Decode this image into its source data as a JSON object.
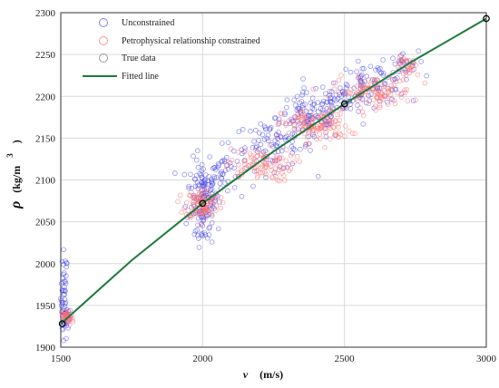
{
  "chart_data": {
    "type": "scatter",
    "xlabel": {
      "symbol": "v",
      "unit": "(m/s)"
    },
    "ylabel": {
      "symbol": "ρ",
      "unit": "(kg/m",
      "exponent": "3",
      "close": ")"
    },
    "xlim": [
      1500,
      3000
    ],
    "ylim": [
      1900,
      2300
    ],
    "xticks": [
      1500,
      2000,
      2500,
      3000
    ],
    "yticks": [
      1900,
      1950,
      2000,
      2050,
      2100,
      2150,
      2200,
      2250,
      2300
    ],
    "grid": true,
    "legend_position": "top-left",
    "series": [
      {
        "name": "Unconstrained",
        "marker": "open-circle",
        "color": "#3030e0",
        "clusters": [
          {
            "x": 1512,
            "y": 1960,
            "sx": 6,
            "sy": 28,
            "n": 45
          },
          {
            "x": 1520,
            "y": 1935,
            "sx": 8,
            "sy": 6,
            "n": 25
          },
          {
            "x": 2000,
            "y": 2085,
            "sx": 28,
            "sy": 20,
            "n": 110
          },
          {
            "x": 2070,
            "y": 2110,
            "sx": 25,
            "sy": 15,
            "n": 40
          },
          {
            "x": 2000,
            "y": 2045,
            "sx": 20,
            "sy": 12,
            "n": 30
          },
          {
            "x": 2250,
            "y": 2140,
            "sx": 70,
            "sy": 14,
            "n": 90
          },
          {
            "x": 2380,
            "y": 2175,
            "sx": 60,
            "sy": 14,
            "n": 100
          },
          {
            "x": 2500,
            "y": 2200,
            "sx": 50,
            "sy": 10,
            "n": 50
          },
          {
            "x": 2600,
            "y": 2215,
            "sx": 60,
            "sy": 12,
            "n": 70
          },
          {
            "x": 2700,
            "y": 2238,
            "sx": 30,
            "sy": 8,
            "n": 25
          }
        ]
      },
      {
        "name": "Petrophysical relationship constrained",
        "marker": "open-circle",
        "color": "#ff7a7a",
        "clusters": [
          {
            "x": 1520,
            "y": 1935,
            "sx": 12,
            "sy": 5,
            "n": 40
          },
          {
            "x": 2000,
            "y": 2072,
            "sx": 30,
            "sy": 9,
            "n": 100
          },
          {
            "x": 2200,
            "y": 2118,
            "sx": 60,
            "sy": 10,
            "n": 90
          },
          {
            "x": 2400,
            "y": 2165,
            "sx": 60,
            "sy": 10,
            "n": 120
          },
          {
            "x": 2600,
            "y": 2205,
            "sx": 70,
            "sy": 9,
            "n": 110
          },
          {
            "x": 2730,
            "y": 2235,
            "sx": 25,
            "sy": 6,
            "n": 30
          }
        ]
      },
      {
        "name": "True data",
        "marker": "open-circle-black",
        "color": "#000000",
        "points": [
          {
            "x": 1505,
            "y": 1928
          },
          {
            "x": 2000,
            "y": 2072
          },
          {
            "x": 2500,
            "y": 2191
          },
          {
            "x": 3000,
            "y": 2293
          }
        ]
      },
      {
        "name": "Fitted line",
        "marker": "line",
        "color": "#1f7a3a",
        "points": [
          {
            "x": 1500,
            "y": 1928
          },
          {
            "x": 1750,
            "y": 2004
          },
          {
            "x": 2000,
            "y": 2072
          },
          {
            "x": 2250,
            "y": 2134
          },
          {
            "x": 2500,
            "y": 2191
          },
          {
            "x": 2750,
            "y": 2244
          },
          {
            "x": 3000,
            "y": 2293
          }
        ]
      }
    ]
  }
}
